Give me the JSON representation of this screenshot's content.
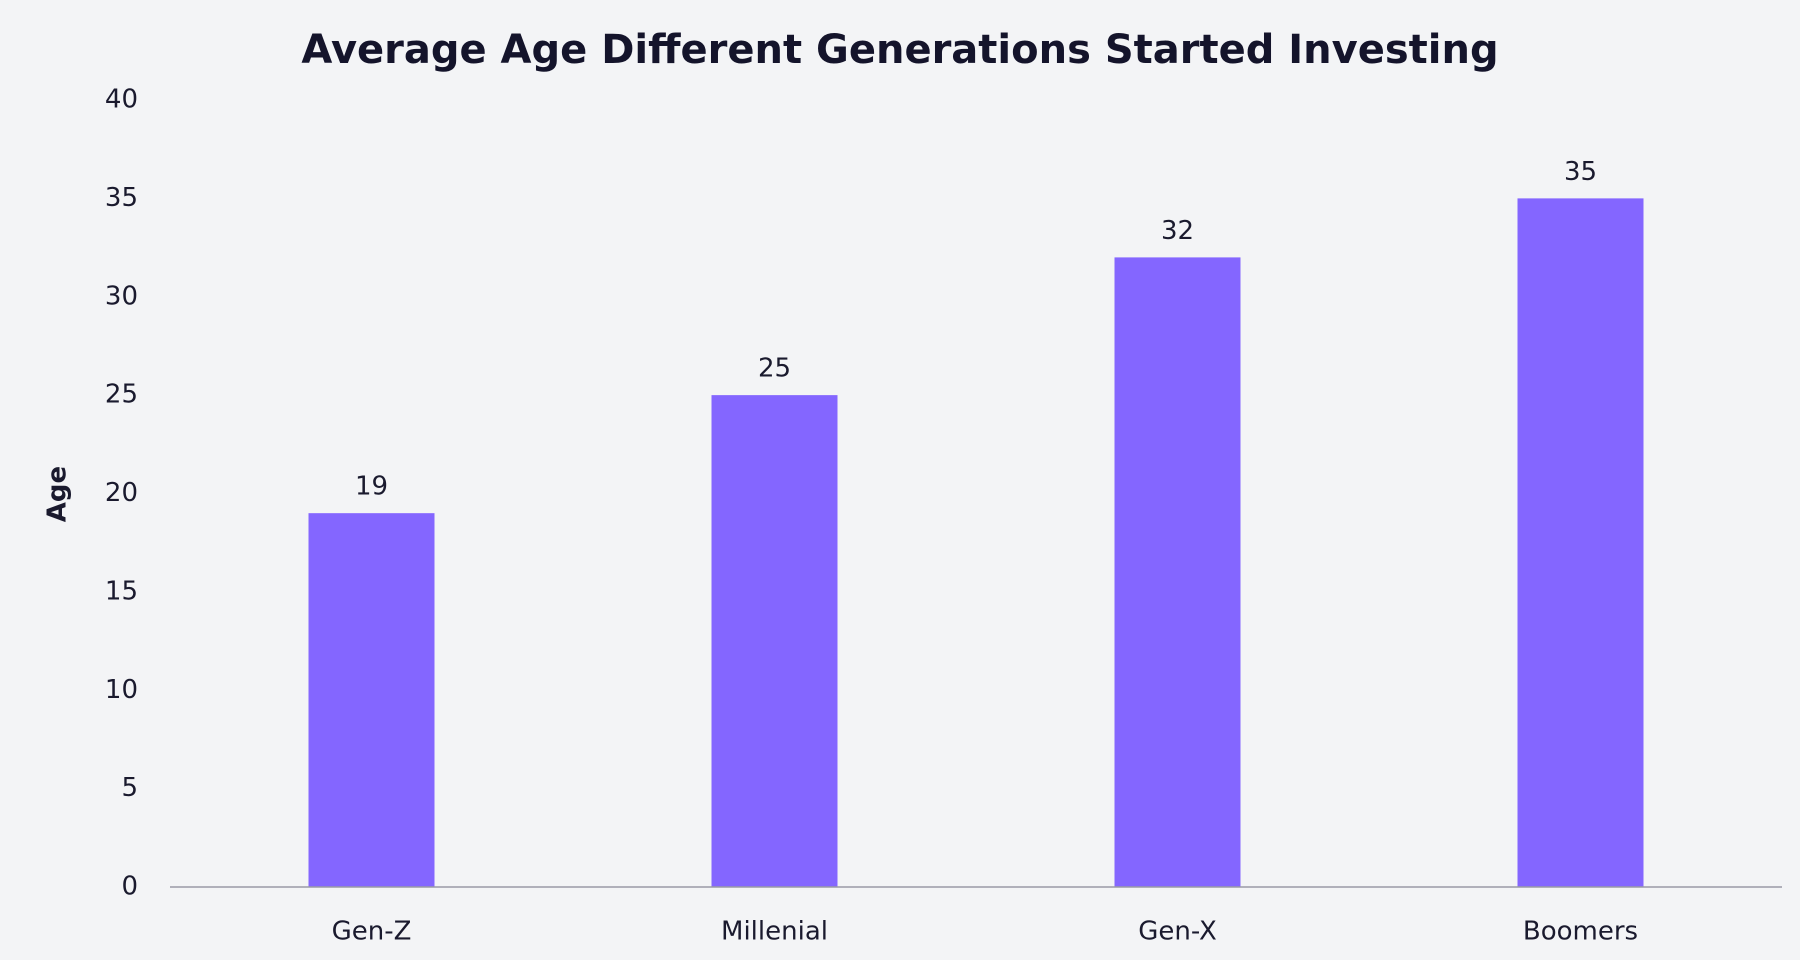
{
  "chart_data": {
    "type": "bar",
    "title": "Average Age Different Generations Started Investing",
    "ylabel": "Age",
    "categories": [
      "Gen-Z",
      "Millenial",
      "Gen-X",
      "Boomers"
    ],
    "values": [
      19,
      25,
      32,
      35
    ],
    "color": "#8466ff",
    "ylim": [
      0,
      40
    ],
    "yticks": [
      0,
      5,
      10,
      15,
      20,
      25,
      30,
      35,
      40
    ],
    "grid": false
  }
}
